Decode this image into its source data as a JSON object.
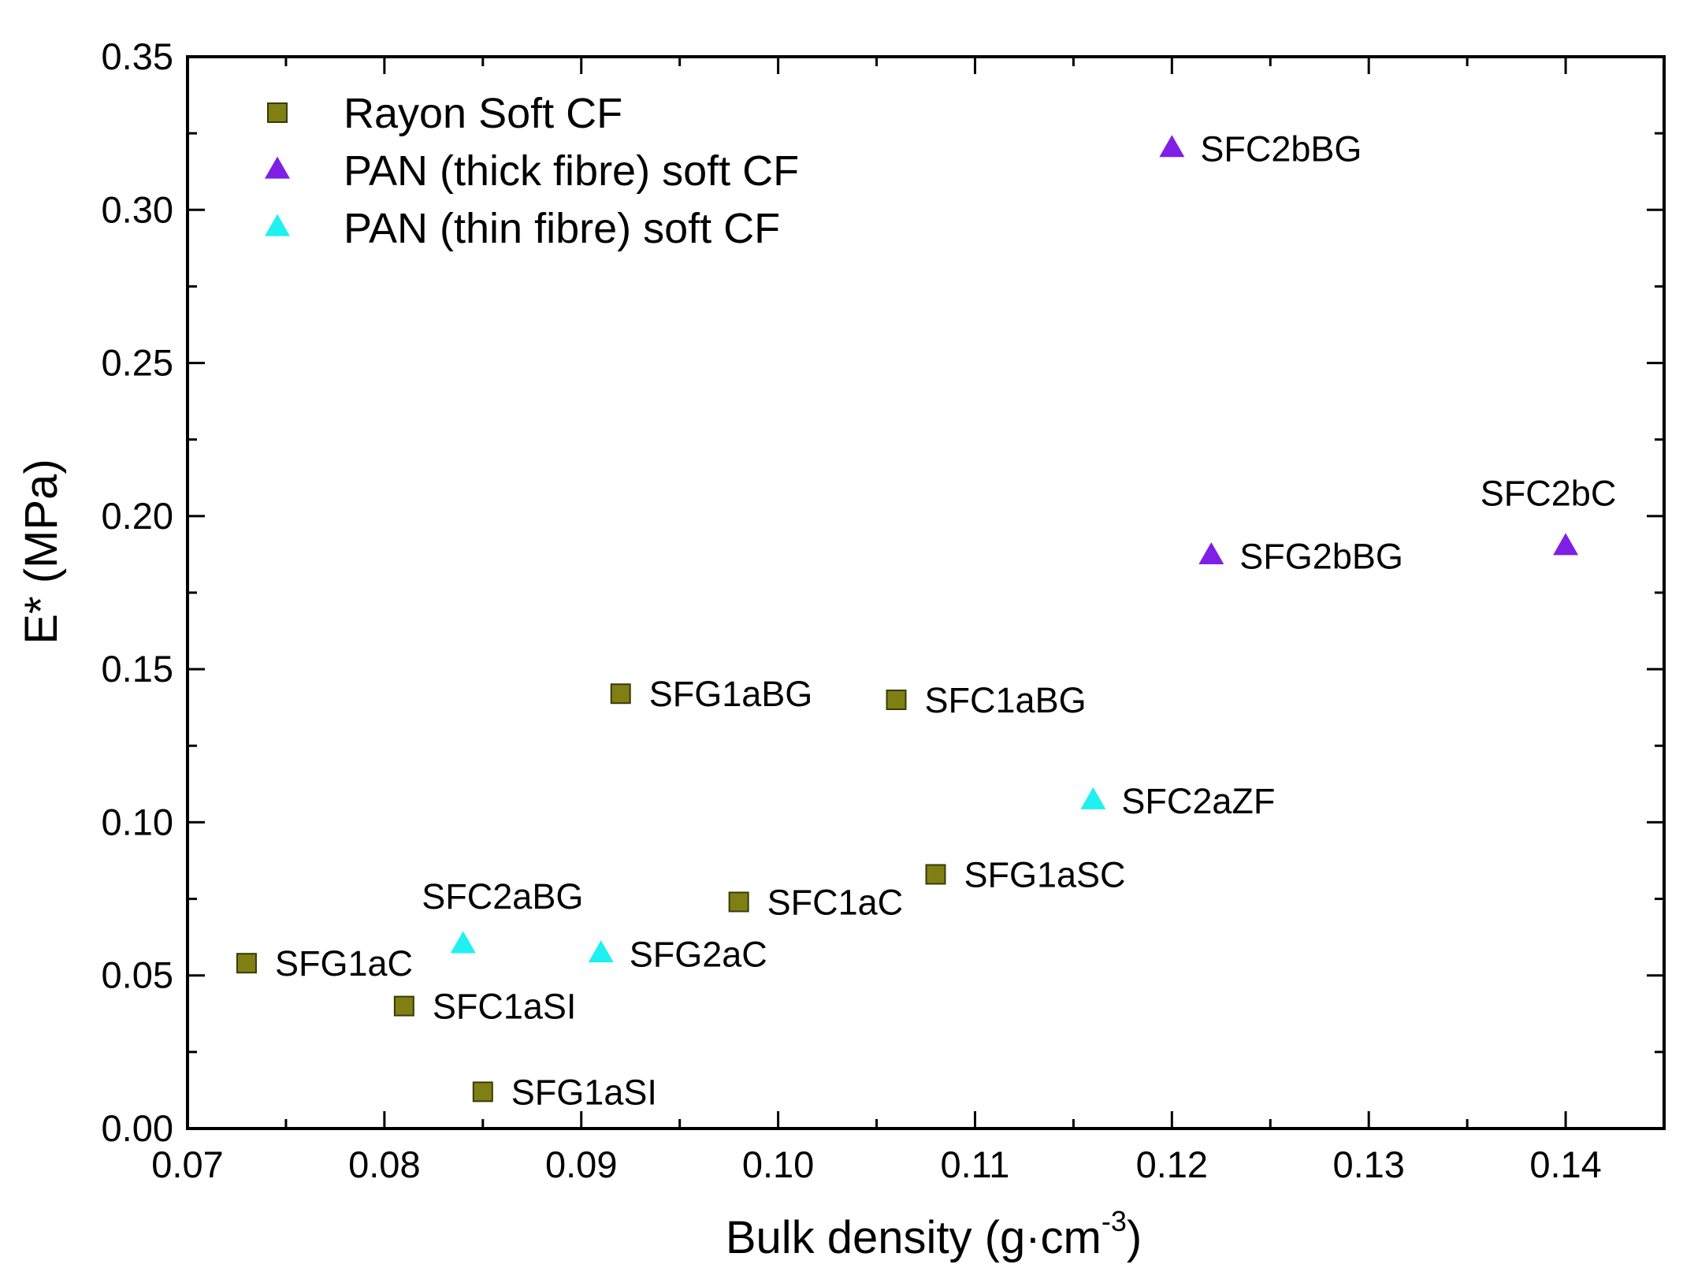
{
  "chart_data": {
    "type": "scatter",
    "title": "",
    "xlabel": "Bulk density (g·cm",
    "xlabel_sup": "-3",
    "xlabel_close": ")",
    "ylabel": "E* (MPa)",
    "xlim": [
      0.07,
      0.145
    ],
    "ylim": [
      0,
      0.35
    ],
    "x_ticks": [
      0.07,
      0.08,
      0.09,
      0.1,
      0.11,
      0.12,
      0.13,
      0.14
    ],
    "x_tick_labels": [
      "0.07",
      "0.08",
      "0.09",
      "0.10",
      "0.11",
      "0.12",
      "0.13",
      "0.14"
    ],
    "y_ticks": [
      0,
      0.05,
      0.1,
      0.15,
      0.2,
      0.25,
      0.3,
      0.35
    ],
    "y_tick_labels": [
      "0.00",
      "0.05",
      "0.10",
      "0.15",
      "0.20",
      "0.25",
      "0.30",
      "0.35"
    ],
    "grid": false,
    "legend_position": "top-left",
    "series": [
      {
        "name": "Rayon Soft CF",
        "marker": "square",
        "color": "#7f7f14",
        "points": [
          {
            "x": 0.073,
            "y": 0.054,
            "label": "SFG1aC"
          },
          {
            "x": 0.081,
            "y": 0.04,
            "label": "SFC1aSI"
          },
          {
            "x": 0.085,
            "y": 0.012,
            "label": "SFG1aSI"
          },
          {
            "x": 0.092,
            "y": 0.142,
            "label": "SFG1aBG"
          },
          {
            "x": 0.098,
            "y": 0.074,
            "label": "SFC1aC"
          },
          {
            "x": 0.106,
            "y": 0.14,
            "label": "SFC1aBG"
          },
          {
            "x": 0.108,
            "y": 0.083,
            "label": "SFG1aSC"
          }
        ]
      },
      {
        "name": "PAN (thick fibre) soft CF",
        "marker": "triangle",
        "color": "#7f1fe6",
        "points": [
          {
            "x": 0.12,
            "y": 0.32,
            "label": "SFC2bBG"
          },
          {
            "x": 0.122,
            "y": 0.187,
            "label": "SFG2bBG"
          },
          {
            "x": 0.14,
            "y": 0.19,
            "label": "SFC2bC"
          }
        ]
      },
      {
        "name": "PAN (thin fibre) soft CF",
        "marker": "triangle",
        "color": "#1ff0f0",
        "points": [
          {
            "x": 0.084,
            "y": 0.06,
            "label": "SFC2aBG"
          },
          {
            "x": 0.091,
            "y": 0.057,
            "label": "SFG2aC"
          },
          {
            "x": 0.116,
            "y": 0.107,
            "label": "SFC2aZF"
          }
        ]
      }
    ]
  }
}
